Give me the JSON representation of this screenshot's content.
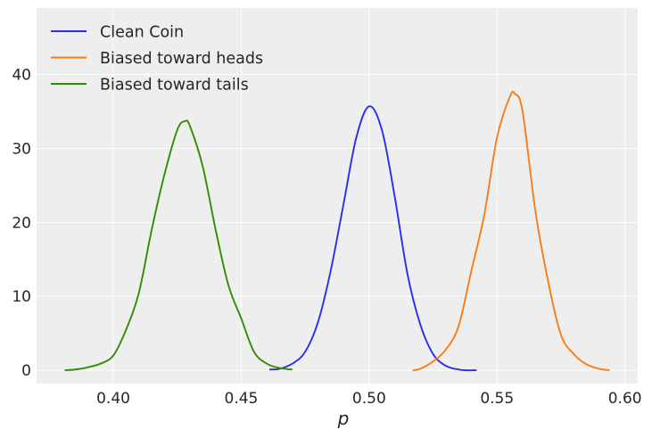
{
  "chart_data": {
    "type": "line",
    "title": "",
    "xlabel": "p",
    "ylabel": "",
    "xlim": [
      0.37,
      0.605
    ],
    "ylim": [
      -1.8,
      49.0
    ],
    "x_ticks": [
      0.4,
      0.45,
      0.5,
      0.55,
      0.6
    ],
    "x_tick_labels": [
      "0.40",
      "0.45",
      "0.50",
      "0.55",
      "0.60"
    ],
    "y_ticks": [
      0,
      10,
      20,
      30,
      40
    ],
    "y_tick_labels": [
      "0",
      "10",
      "20",
      "30",
      "40"
    ],
    "grid": true,
    "legend_position": "top-left",
    "background": "#eeeeee",
    "series": [
      {
        "name": "Clean Coin",
        "color": "#2a2eec",
        "x": [
          0.461,
          0.465,
          0.47,
          0.475,
          0.48,
          0.485,
          0.49,
          0.495,
          0.5,
          0.505,
          0.51,
          0.515,
          0.52,
          0.525,
          0.53,
          0.535,
          0.538,
          0.542
        ],
        "y": [
          0.1,
          0.2,
          0.9,
          2.5,
          6.5,
          13.5,
          22.5,
          31.5,
          35.7,
          32.5,
          23.5,
          13.0,
          6.2,
          2.2,
          0.6,
          0.1,
          0.0,
          0.0
        ]
      },
      {
        "name": "Biased toward heads",
        "color": "#fa7c17",
        "x": [
          0.517,
          0.52,
          0.525,
          0.53,
          0.535,
          0.54,
          0.545,
          0.55,
          0.555,
          0.557,
          0.56,
          0.565,
          0.57,
          0.575,
          0.58,
          0.585,
          0.59,
          0.594
        ],
        "y": [
          0.0,
          0.2,
          1.2,
          2.8,
          6.0,
          13.5,
          21.0,
          31.5,
          37.0,
          37.4,
          35.0,
          21.5,
          12.0,
          4.8,
          2.2,
          0.8,
          0.2,
          0.0
        ]
      },
      {
        "name": "Biased toward tails",
        "color": "#328c06",
        "x": [
          0.381,
          0.385,
          0.39,
          0.395,
          0.4,
          0.405,
          0.41,
          0.415,
          0.42,
          0.425,
          0.428,
          0.43,
          0.435,
          0.44,
          0.445,
          0.45,
          0.455,
          0.46,
          0.465,
          0.47
        ],
        "y": [
          0.0,
          0.1,
          0.4,
          0.9,
          2.0,
          5.5,
          10.5,
          19.0,
          26.5,
          32.5,
          33.7,
          33.0,
          27.5,
          19.0,
          11.5,
          7.0,
          2.5,
          0.9,
          0.3,
          0.1
        ]
      }
    ]
  }
}
